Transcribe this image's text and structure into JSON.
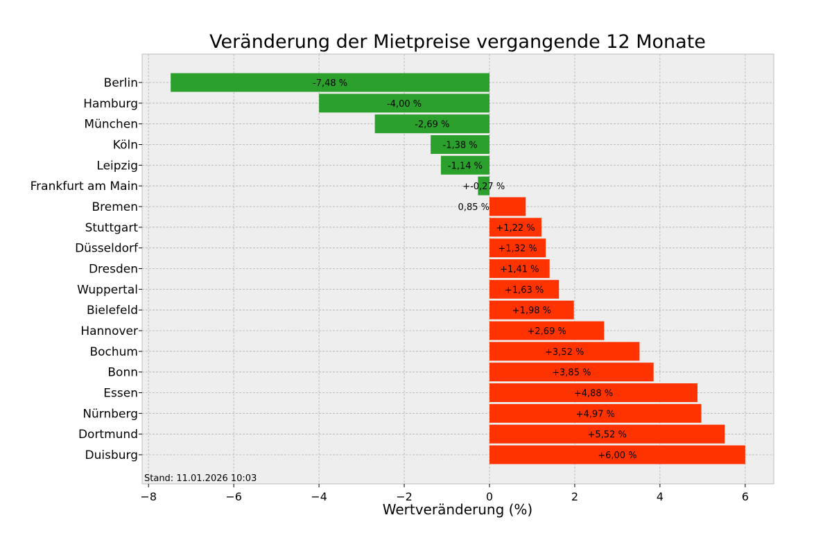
{
  "chart_data": {
    "type": "bar",
    "orientation": "horizontal",
    "title": "Veränderung der Mietpreise vergangende 12 Monate",
    "xlabel": "Wertveränderung (%)",
    "ylabel": "",
    "xlim": [
      -8.15,
      6.67
    ],
    "xticks": [
      -8,
      -6,
      -4,
      -2,
      0,
      2,
      4,
      6
    ],
    "xtick_labels": [
      "−8",
      "−6",
      "−4",
      "−2",
      "0",
      "2",
      "4",
      "6"
    ],
    "grid": true,
    "annotation": "Stand: 11.01.2026 10:03",
    "colors": {
      "negative": "#2ca02c",
      "positive": "#ff3300",
      "background": "#eeeeee",
      "grid": "#b0b0b0"
    },
    "categories": [
      "Berlin",
      "Hamburg",
      "München",
      "Köln",
      "Leipzig",
      "Frankfurt am Main",
      "Bremen",
      "Stuttgart",
      "Düsseldorf",
      "Dresden",
      "Wuppertal",
      "Bielefeld",
      "Hannover",
      "Bochum",
      "Bonn",
      "Essen",
      "Nürnberg",
      "Dortmund",
      "Duisburg"
    ],
    "values": [
      -7.48,
      -4.0,
      -2.69,
      -1.38,
      -1.14,
      -0.27,
      0.85,
      1.22,
      1.32,
      1.41,
      1.63,
      1.98,
      2.69,
      3.52,
      3.85,
      4.88,
      4.97,
      5.52,
      6.0
    ],
    "data_labels": [
      "-7,48 %",
      "-4,00 %",
      "-2,69 %",
      "-1,38 %",
      "-1,14 %",
      "+-0,27 %",
      "0,85 %",
      "+1,22 %",
      "+1,32 %",
      "+1,41 %",
      "+1,63 %",
      "+1,98 %",
      "+2,69 %",
      "+3,52 %",
      "+3,85 %",
      "+4,88 %",
      "+4,97 %",
      "+5,52 %",
      "+6,00 %"
    ]
  }
}
